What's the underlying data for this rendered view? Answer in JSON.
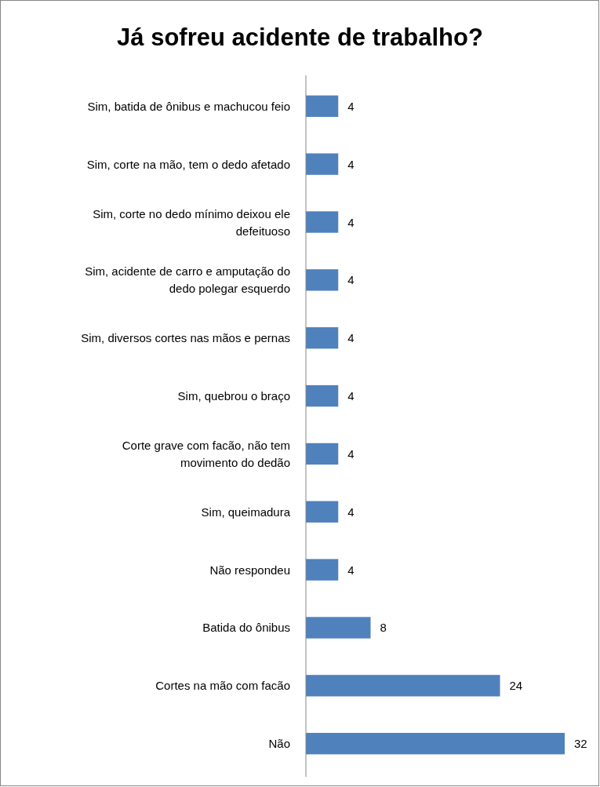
{
  "chart_data": {
    "type": "bar",
    "orientation": "horizontal",
    "title": "Já sofreu acidente de trabalho?",
    "categories": [
      "Sim, batida de ônibus e machucou feio",
      "Sim, corte na mão, tem o dedo afetado",
      "Sim, corte no dedo mínimo deixou ele defeituoso",
      "Sim, acidente de carro e amputação do dedo polegar esquerdo",
      "Sim, diversos cortes nas mãos e pernas",
      "Sim, quebrou o braço",
      "Corte grave com facão, não tem movimento do dedão",
      "Sim, queimadura",
      "Não respondeu",
      "Batida do ônibus",
      "Cortes na mão com facão",
      "Não"
    ],
    "values": [
      4,
      4,
      4,
      4,
      4,
      4,
      4,
      4,
      4,
      8,
      24,
      32
    ],
    "color": "#4f81bd",
    "data_labels": true
  }
}
